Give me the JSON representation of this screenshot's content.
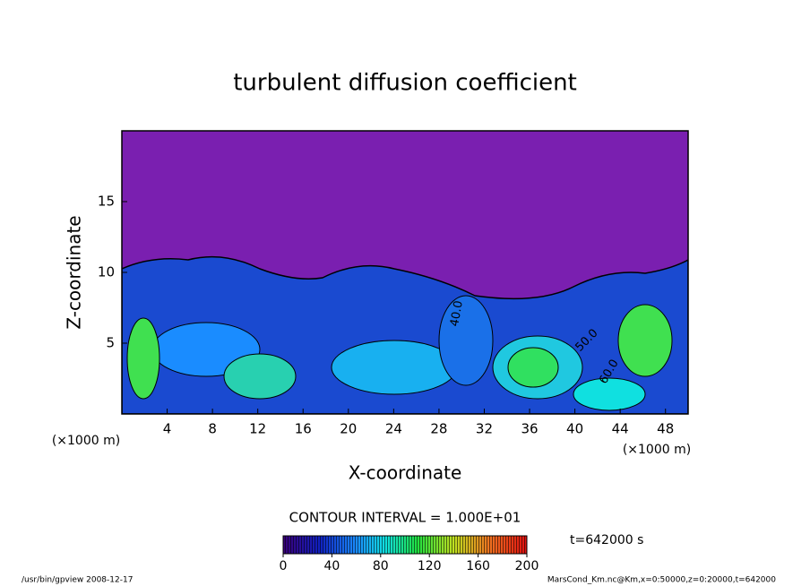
{
  "chart_data": {
    "type": "contour",
    "title": "turbulent diffusion coefficient",
    "xlabel": "X-coordinate",
    "ylabel": "Z-coordinate",
    "x_unit": "(×1000 m)",
    "y_unit": "(×1000 m)",
    "xlim": [
      0,
      50
    ],
    "xticks": [
      4,
      8,
      12,
      16,
      20,
      24,
      28,
      32,
      36,
      40,
      44,
      48
    ],
    "ylim": [
      0,
      20
    ],
    "yticks": [
      5,
      10,
      15
    ],
    "contour_labels": [
      "40.0",
      "50.0",
      "60.0"
    ],
    "contour_interval": "CONTOUR INTERVAL = 1.000E+01",
    "colorbar": {
      "lim": [
        0,
        200
      ],
      "ticks": [
        0,
        40,
        80,
        120,
        160,
        200
      ]
    },
    "time_label": "t=642000 s",
    "footer_left": "/usr/bin/gpview   2008-12-17",
    "footer_right": "MarsCond_Km.nc@Km,x=0:50000,z=0:20000,t=642000"
  }
}
